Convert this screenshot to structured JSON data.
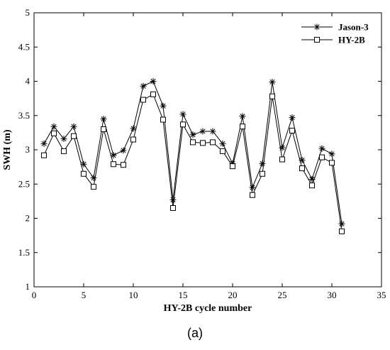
{
  "chart_data": {
    "type": "line",
    "title": "",
    "xlabel": "HY-2B cycle number",
    "ylabel": "SWH (m)",
    "xlim": [
      0,
      35
    ],
    "ylim": [
      1,
      5
    ],
    "xticks": [
      "0",
      "5",
      "10",
      "15",
      "20",
      "25",
      "30",
      "35"
    ],
    "yticks": [
      "1",
      "1.5",
      "2",
      "2.5",
      "3",
      "3.5",
      "4",
      "4.5",
      "5"
    ],
    "xtick_values": [
      0,
      5,
      10,
      15,
      20,
      25,
      30,
      35
    ],
    "ytick_values": [
      1,
      1.5,
      2,
      2.5,
      3,
      3.5,
      4,
      4.5,
      5
    ],
    "grid": false,
    "legend_position": "top-right",
    "x": [
      1,
      2,
      3,
      4,
      5,
      6,
      7,
      8,
      9,
      10,
      11,
      12,
      13,
      14,
      15,
      16,
      17,
      18,
      19,
      20,
      21,
      22,
      23,
      24,
      25,
      26,
      27,
      28,
      29,
      30,
      31
    ],
    "series": [
      {
        "name": "Jason-3",
        "marker": "asterisk",
        "values": [
          3.09,
          3.34,
          3.16,
          3.34,
          2.79,
          2.59,
          3.45,
          2.92,
          2.99,
          3.31,
          3.93,
          4.0,
          3.64,
          2.27,
          3.52,
          3.22,
          3.27,
          3.27,
          3.09,
          2.8,
          3.49,
          2.45,
          2.8,
          3.99,
          3.03,
          3.47,
          2.85,
          2.57,
          3.02,
          2.94,
          1.92
        ]
      },
      {
        "name": "HY-2B",
        "marker": "square",
        "values": [
          2.92,
          3.24,
          2.98,
          3.2,
          2.65,
          2.46,
          3.3,
          2.79,
          2.78,
          3.15,
          3.73,
          3.81,
          3.44,
          2.15,
          3.37,
          3.11,
          3.1,
          3.11,
          2.98,
          2.76,
          3.34,
          2.34,
          2.65,
          3.78,
          2.86,
          3.28,
          2.73,
          2.48,
          2.89,
          2.81,
          1.81
        ]
      }
    ]
  },
  "caption": "(a)"
}
